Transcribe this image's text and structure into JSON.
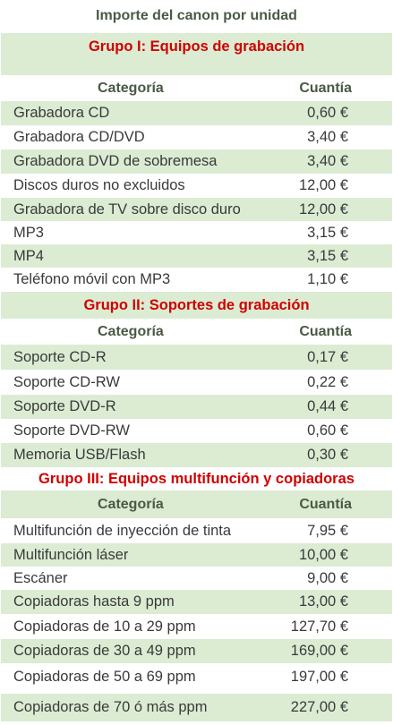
{
  "title": "Importe del canon por unidad",
  "headers": {
    "category": "Categoría",
    "amount": "Cuantía"
  },
  "groups": [
    {
      "name": "Grupo I: Equipos de grabación",
      "rows": [
        {
          "category": "Grabadora CD",
          "amount": "0,60 €"
        },
        {
          "category": "Grabadora CD/DVD",
          "amount": "3,40 €"
        },
        {
          "category": "Grabadora DVD de sobremesa",
          "amount": "3,40 €"
        },
        {
          "category": "Discos duros no excluidos",
          "amount": "12,00 €"
        },
        {
          "category": "Grabadora de TV sobre disco duro",
          "amount": "12,00 €"
        },
        {
          "category": "MP3",
          "amount": "3,15 €"
        },
        {
          "category": "MP4",
          "amount": "3,15 €"
        },
        {
          "category": "Teléfono móvil con MP3",
          "amount": "1,10 €"
        }
      ]
    },
    {
      "name": "Grupo II: Soportes de grabación",
      "rows": [
        {
          "category": "Soporte CD-R",
          "amount": "0,17 €"
        },
        {
          "category": "Soporte CD-RW",
          "amount": "0,22 €"
        },
        {
          "category": "Soporte DVD-R",
          "amount": "0,44 €"
        },
        {
          "category": "Soporte DVD-RW",
          "amount": "0,60 €"
        },
        {
          "category": "Memoria USB/Flash",
          "amount": "0,30 €"
        }
      ]
    },
    {
      "name": "Grupo III: Equipos multifunción y copiadoras",
      "rows": [
        {
          "category": "Multifunción de inyección de tinta",
          "amount": "7,95 €"
        },
        {
          "category": "Multifunción láser",
          "amount": "10,00 €"
        },
        {
          "category": "Escáner",
          "amount": "9,00 €"
        },
        {
          "category": "Copiadoras hasta 9 ppm",
          "amount": "13,00 €"
        },
        {
          "category": "Copiadoras de 10 a 29 ppm",
          "amount": "127,70 €"
        },
        {
          "category": "Copiadoras de 30 a 49 ppm",
          "amount": "169,00 €"
        },
        {
          "category": "Copiadoras de 50 a 69 ppm",
          "amount": "197,00 €"
        },
        {
          "category": "Copiadoras de 70 ó más ppm",
          "amount": "227,00 €"
        }
      ]
    }
  ],
  "colors": {
    "row_green": "#dbecd3",
    "group_red": "#d10000",
    "header_text": "#4a5a45",
    "body_text": "#3a3a3a"
  }
}
